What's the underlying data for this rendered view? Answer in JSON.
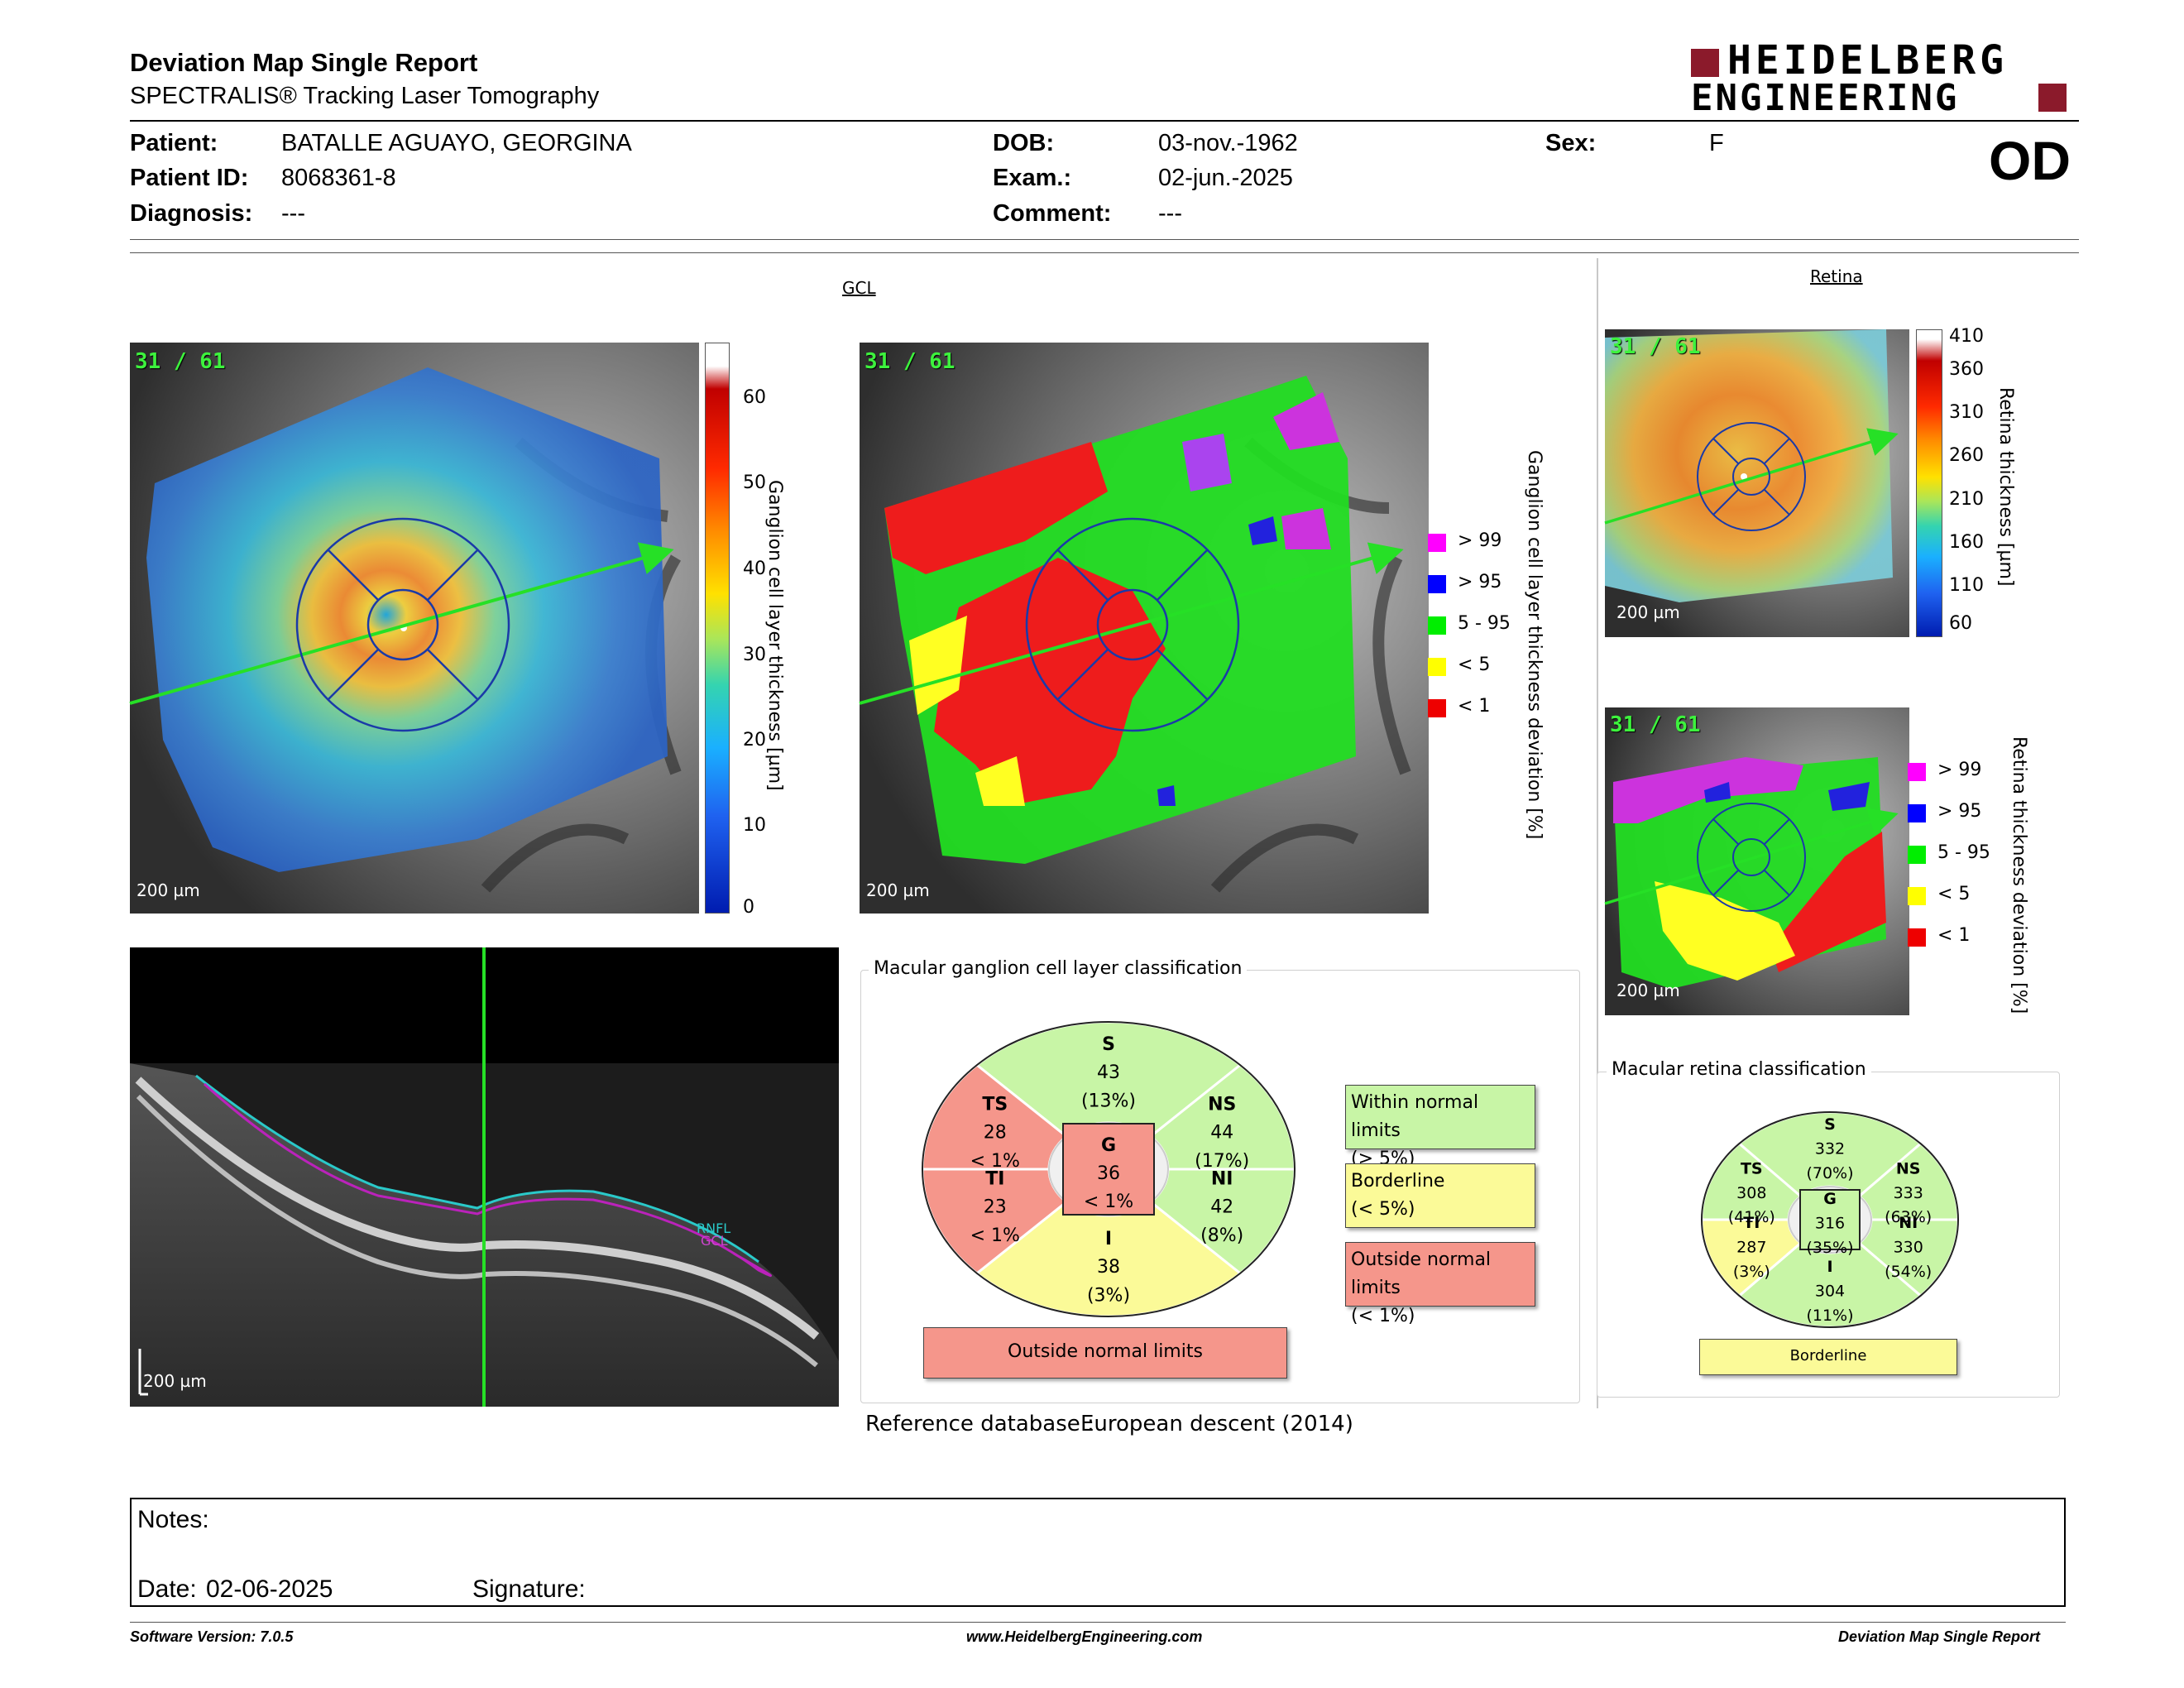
{
  "header": {
    "title": "Deviation Map Single Report",
    "subtitle": "SPECTRALIS® Tracking Laser Tomography",
    "logo_line1": "HEIDELBERG",
    "logo_line2": "ENGINEERING",
    "eye": "OD"
  },
  "patient": {
    "patient_label": "Patient:",
    "patient_value": "BATALLE AGUAYO, GEORGINA",
    "id_label": "Patient ID:",
    "id_value": "8068361-8",
    "diagnosis_label": "Diagnosis:",
    "diagnosis_value": "---",
    "dob_label": "DOB:",
    "dob_value": "03-nov.-1962",
    "exam_label": "Exam.:",
    "exam_value": "02-jun.-2025",
    "comment_label": "Comment:",
    "comment_value": "---",
    "sex_label": "Sex:",
    "sex_value": "F"
  },
  "gcl": {
    "section_label": "GCL",
    "count": "31 / 61",
    "scalebar": "200 µm",
    "thickness_axis_label": "Ganglion cell layer thickness [µm]",
    "thickness_ticks": [
      "60",
      "50",
      "40",
      "30",
      "20",
      "10",
      "0"
    ],
    "deviation_axis_label": "Ganglion cell layer thickness deviation [%]",
    "legend": [
      {
        "label": "> 99",
        "color": "#ff00ff"
      },
      {
        "label": "> 95",
        "color": "#0000ff"
      },
      {
        "label": "5 - 95",
        "color": "#00ee00"
      },
      {
        "label": "< 5",
        "color": "#ffff00"
      },
      {
        "label": "< 1",
        "color": "#ee0000"
      }
    ]
  },
  "retina": {
    "section_label": "Retina",
    "count": "31 / 61",
    "scalebar": "200 µm",
    "thickness_axis_label": "Retina thickness [µm]",
    "thickness_ticks": [
      "410",
      "360",
      "310",
      "260",
      "210",
      "160",
      "110",
      "60"
    ],
    "deviation_axis_label": "Retina thickness deviation [%]",
    "legend": [
      {
        "label": "> 99",
        "color": "#ff00ff"
      },
      {
        "label": "> 95",
        "color": "#0000ff"
      },
      {
        "label": "5 - 95",
        "color": "#00ee00"
      },
      {
        "label": "< 5",
        "color": "#ffff00"
      },
      {
        "label": "< 1",
        "color": "#ee0000"
      }
    ]
  },
  "bscan": {
    "scalebar": "200 µm",
    "rnfl_label": "RNFL",
    "gcl_label": "GCL"
  },
  "gcl_classification": {
    "title": "Macular ganglion cell layer classification",
    "sectors": {
      "S": {
        "name": "S",
        "value": "43",
        "pct": "(13%)"
      },
      "TS": {
        "name": "TS",
        "value": "28",
        "pct": "< 1%"
      },
      "NS": {
        "name": "NS",
        "value": "44",
        "pct": "(17%)"
      },
      "TI": {
        "name": "TI",
        "value": "23",
        "pct": "< 1%"
      },
      "NI": {
        "name": "NI",
        "value": "42",
        "pct": "(8%)"
      },
      "I": {
        "name": "I",
        "value": "38",
        "pct": "(3%)"
      },
      "G": {
        "name": "G",
        "value": "36",
        "pct": "< 1%"
      }
    },
    "result": "Outside normal limits",
    "legend": {
      "within_1": "Within normal limits",
      "within_2": "(> 5%)",
      "border_1": "Borderline",
      "border_2": "(< 5%)",
      "outside_1": "Outside normal limits",
      "outside_2": "(< 1%)"
    },
    "colors": {
      "green": "#c8f5a6",
      "yellow": "#fbfa98",
      "red": "#f5968b"
    }
  },
  "retina_classification": {
    "title": "Macular retina classification",
    "sectors": {
      "S": {
        "name": "S",
        "value": "332",
        "pct": "(70%)"
      },
      "TS": {
        "name": "TS",
        "value": "308",
        "pct": "(41%)"
      },
      "NS": {
        "name": "NS",
        "value": "333",
        "pct": "(63%)"
      },
      "TI": {
        "name": "TI",
        "value": "287",
        "pct": "(3%)"
      },
      "NI": {
        "name": "NI",
        "value": "330",
        "pct": "(54%)"
      },
      "I": {
        "name": "I",
        "value": "304",
        "pct": "(11%)"
      },
      "G": {
        "name": "G",
        "value": "316",
        "pct": "(35%)"
      }
    },
    "result": "Borderline"
  },
  "reference": {
    "label": "Reference database :",
    "value": "European descent (2014)"
  },
  "notes": {
    "notes_label": "Notes:",
    "date_label": "Date:",
    "date_value": "02-06-2025",
    "signature_label": "Signature:"
  },
  "footer": {
    "software": "Software Version: 7.0.5",
    "website": "www.HeidelbergEngineering.com",
    "report_type": "Deviation Map Single Report"
  }
}
